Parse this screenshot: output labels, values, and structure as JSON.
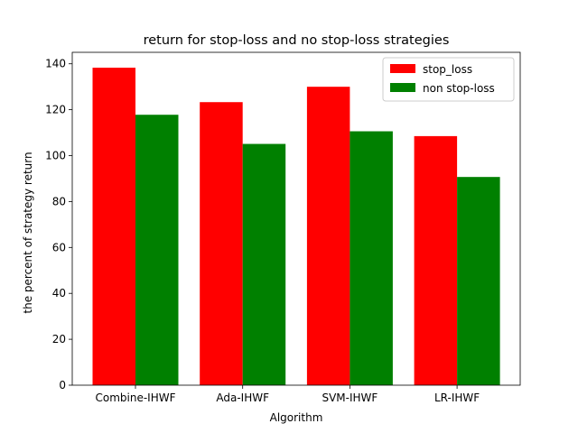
{
  "chart_data": {
    "type": "bar",
    "title": "return for stop-loss and no stop-loss strategies",
    "xlabel": "Algorithm",
    "ylabel": "the percent of strategy return",
    "categories": [
      "Combine-IHWF",
      "Ada-IHWF",
      "SVM-IHWF",
      "LR-IHWF"
    ],
    "series": [
      {
        "name": "stop_loss",
        "color": "#ff0000",
        "values": [
          138.3,
          123.3,
          130.0,
          108.5
        ]
      },
      {
        "name": "non stop-loss",
        "color": "#008000",
        "values": [
          117.8,
          105.1,
          110.6,
          90.7
        ]
      }
    ],
    "ylim": [
      0,
      145
    ],
    "yticks": [
      0,
      20,
      40,
      60,
      80,
      100,
      120,
      140
    ],
    "grid": false,
    "legend_position": "top-right"
  }
}
